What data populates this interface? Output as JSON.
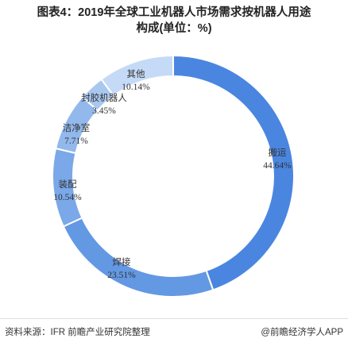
{
  "title_line1": "图表4：2019年全球工业机器人市场需求按机器人用途",
  "title_line2": "构成(单位：%)",
  "source": "资料来源：IFR 前瞻产业研究院整理",
  "brand": "@前瞻经济学人APP",
  "chart_data": {
    "type": "pie",
    "subtype": "donut",
    "title": "图表4：2019年全球工业机器人市场需求按机器人用途构成(单位：%)",
    "unit": "%",
    "categories": [
      "搬运",
      "焊接",
      "装配",
      "洁净室",
      "封胶机器人",
      "其他"
    ],
    "values": [
      44.64,
      23.51,
      10.54,
      7.71,
      3.45,
      10.14
    ],
    "value_labels": [
      "44.64%",
      "23.51%",
      "10.54%",
      "7.71%",
      "3.45%",
      "10.14%"
    ],
    "colors": [
      "#4a86e0",
      "#6398e3",
      "#7aa8e8",
      "#92b8ec",
      "#a8c8f0",
      "#c4daf6"
    ],
    "legend": "none"
  }
}
